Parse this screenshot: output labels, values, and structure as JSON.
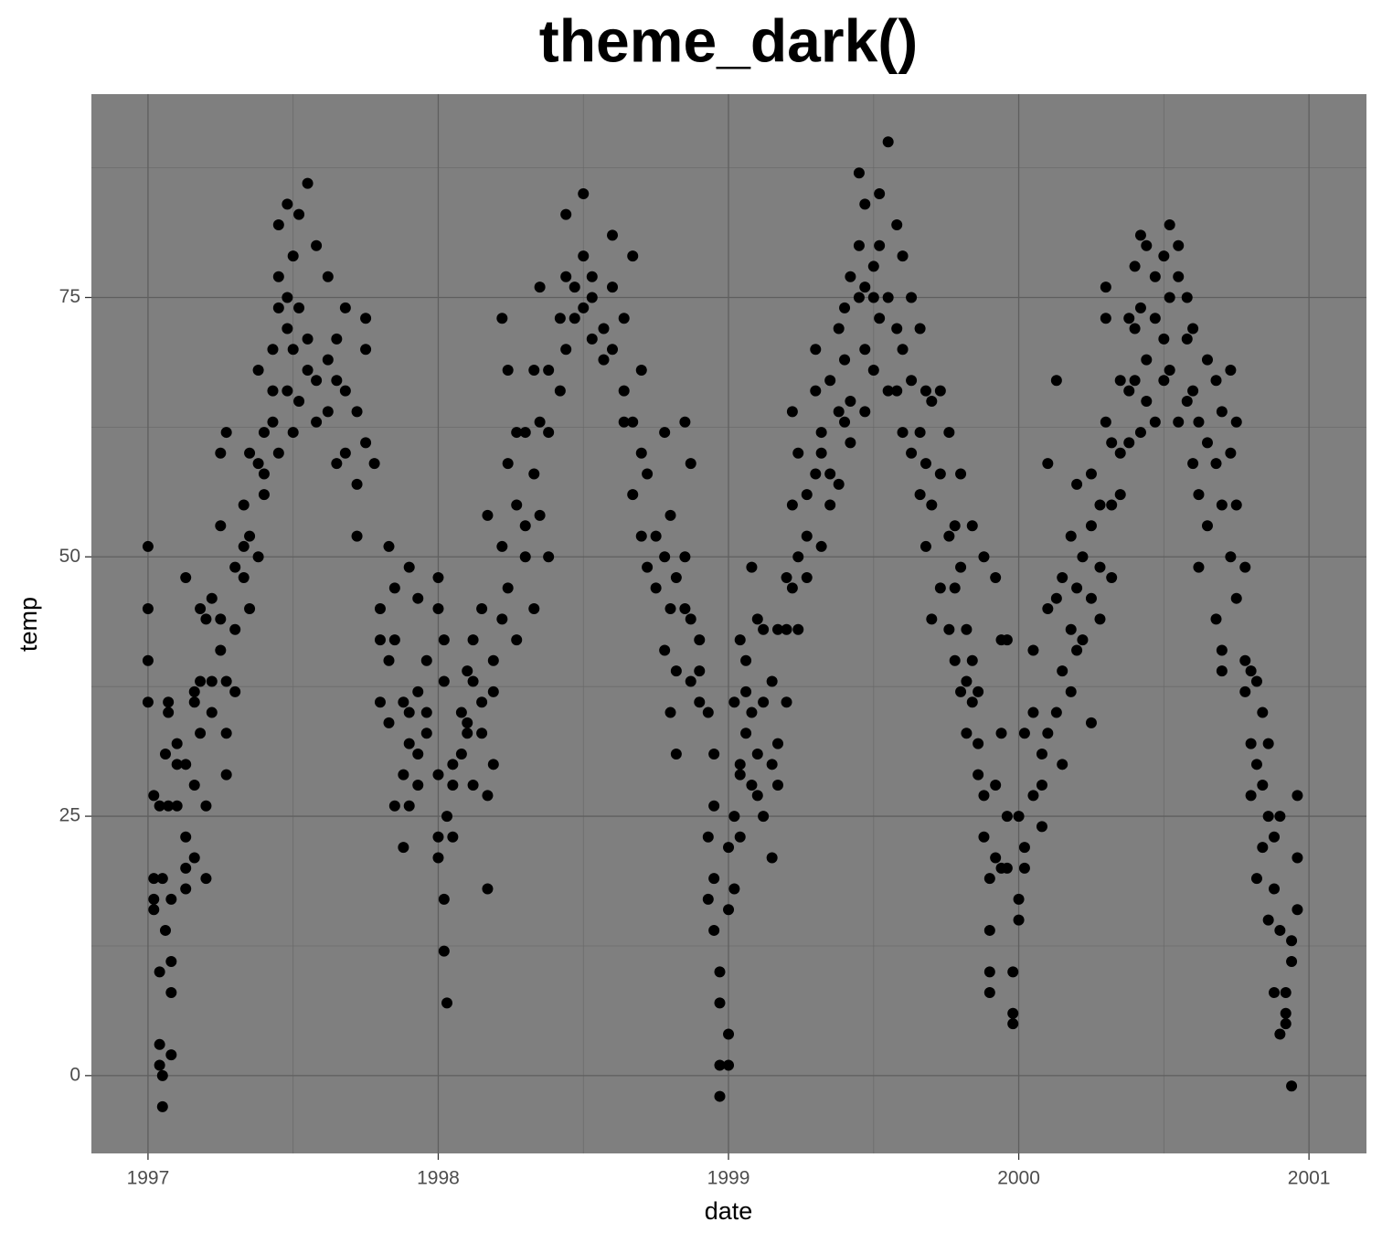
{
  "chart_data": {
    "type": "scatter",
    "title": "theme_dark()",
    "x_label": "date",
    "y_label": "temp",
    "xlim": [
      1996.805,
      2001.198
    ],
    "ylim": [
      -7.5,
      94.6
    ],
    "xticks": [
      1997,
      1998,
      1999,
      2000,
      2001
    ],
    "yticks": [
      0,
      25,
      50,
      75
    ],
    "x_minor_ticks": [
      1997.5,
      1998.5,
      1999.5,
      2000.5
    ],
    "y_minor_ticks": [
      12.5,
      37.5,
      62.5,
      87.5
    ],
    "grid": true,
    "background": "#7f7f7f",
    "x": [
      1997,
      1997,
      1997,
      1997,
      1997.02,
      1997.02,
      1997.02,
      1997.02,
      1997.04,
      1997.04,
      1997.04,
      1997.04,
      1997.05,
      1997.05,
      1997.05,
      1997.06,
      1997.06,
      1997.07,
      1997.07,
      1997.07,
      1997.08,
      1997.08,
      1997.08,
      1997.08,
      1997.1,
      1997.1,
      1997.1,
      1997.13,
      1997.13,
      1997.13,
      1997.13,
      1997.13,
      1997.16,
      1997.16,
      1997.16,
      1997.16,
      1997.18,
      1997.18,
      1997.18,
      1997.2,
      1997.2,
      1997.2,
      1997.22,
      1997.22,
      1997.22,
      1997.25,
      1997.25,
      1997.25,
      1997.25,
      1997.27,
      1997.27,
      1997.27,
      1997.27,
      1997.3,
      1997.3,
      1997.3,
      1997.33,
      1997.33,
      1997.33,
      1997.35,
      1997.35,
      1997.35,
      1997.38,
      1997.38,
      1997.38,
      1997.4,
      1997.4,
      1997.4,
      1997.43,
      1997.43,
      1997.43,
      1997.45,
      1997.45,
      1997.45,
      1997.45,
      1997.48,
      1997.48,
      1997.48,
      1997.48,
      1997.5,
      1997.5,
      1997.5,
      1997.52,
      1997.52,
      1997.52,
      1997.55,
      1997.55,
      1997.55,
      1997.58,
      1997.58,
      1997.58,
      1997.62,
      1997.62,
      1997.62,
      1997.65,
      1997.65,
      1997.65,
      1997.68,
      1997.68,
      1997.68,
      1997.72,
      1997.72,
      1997.72,
      1997.75,
      1997.75,
      1997.75,
      1997.78,
      1997.8,
      1997.8,
      1997.8,
      1997.83,
      1997.83,
      1997.83,
      1997.85,
      1997.85,
      1997.85,
      1997.88,
      1997.88,
      1997.88,
      1997.9,
      1997.9,
      1997.9,
      1997.9,
      1997.93,
      1997.93,
      1997.93,
      1997.93,
      1997.96,
      1997.96,
      1997.96,
      1998,
      1998,
      1998,
      1998,
      1998,
      1998.02,
      1998.02,
      1998.02,
      1998.02,
      1998.03,
      1998.03,
      1998.05,
      1998.05,
      1998.05,
      1998.08,
      1998.08,
      1998.1,
      1998.1,
      1998.1,
      1998.12,
      1998.12,
      1998.12,
      1998.15,
      1998.15,
      1998.15,
      1998.17,
      1998.17,
      1998.17,
      1998.19,
      1998.19,
      1998.19,
      1998.22,
      1998.22,
      1998.22,
      1998.24,
      1998.24,
      1998.24,
      1998.27,
      1998.27,
      1998.27,
      1998.3,
      1998.3,
      1998.3,
      1998.33,
      1998.33,
      1998.33,
      1998.35,
      1998.35,
      1998.35,
      1998.38,
      1998.38,
      1998.38,
      1998.42,
      1998.42,
      1998.44,
      1998.44,
      1998.44,
      1998.47,
      1998.47,
      1998.5,
      1998.5,
      1998.5,
      1998.53,
      1998.53,
      1998.53,
      1998.57,
      1998.57,
      1998.6,
      1998.6,
      1998.6,
      1998.64,
      1998.64,
      1998.64,
      1998.67,
      1998.67,
      1998.67,
      1998.7,
      1998.7,
      1998.7,
      1998.72,
      1998.72,
      1998.75,
      1998.75,
      1998.78,
      1998.78,
      1998.78,
      1998.8,
      1998.8,
      1998.8,
      1998.82,
      1998.82,
      1998.82,
      1998.85,
      1998.85,
      1998.85,
      1998.87,
      1998.87,
      1998.87,
      1998.9,
      1998.9,
      1998.9,
      1998.93,
      1998.93,
      1998.93,
      1998.95,
      1998.95,
      1998.95,
      1998.95,
      1998.97,
      1998.97,
      1998.97,
      1998.97,
      1999,
      1999,
      1999,
      1999,
      1999.02,
      1999.02,
      1999.02,
      1999.04,
      1999.04,
      1999.04,
      1999.04,
      1999.06,
      1999.06,
      1999.06,
      1999.08,
      1999.08,
      1999.08,
      1999.1,
      1999.1,
      1999.1,
      1999.12,
      1999.12,
      1999.12,
      1999.15,
      1999.15,
      1999.15,
      1999.17,
      1999.17,
      1999.17,
      1999.2,
      1999.2,
      1999.2,
      1999.22,
      1999.22,
      1999.22,
      1999.24,
      1999.24,
      1999.24,
      1999.27,
      1999.27,
      1999.27,
      1999.3,
      1999.3,
      1999.3,
      1999.32,
      1999.32,
      1999.32,
      1999.35,
      1999.35,
      1999.35,
      1999.38,
      1999.38,
      1999.38,
      1999.4,
      1999.4,
      1999.4,
      1999.42,
      1999.42,
      1999.42,
      1999.45,
      1999.45,
      1999.45,
      1999.47,
      1999.47,
      1999.47,
      1999.47,
      1999.5,
      1999.5,
      1999.5,
      1999.52,
      1999.52,
      1999.52,
      1999.55,
      1999.55,
      1999.55,
      1999.58,
      1999.58,
      1999.58,
      1999.6,
      1999.6,
      1999.6,
      1999.63,
      1999.63,
      1999.63,
      1999.66,
      1999.66,
      1999.66,
      1999.68,
      1999.68,
      1999.68,
      1999.7,
      1999.7,
      1999.7,
      1999.73,
      1999.73,
      1999.73,
      1999.76,
      1999.76,
      1999.76,
      1999.78,
      1999.78,
      1999.78,
      1999.8,
      1999.8,
      1999.8,
      1999.82,
      1999.82,
      1999.82,
      1999.84,
      1999.84,
      1999.84,
      1999.86,
      1999.86,
      1999.86,
      1999.88,
      1999.88,
      1999.88,
      1999.9,
      1999.9,
      1999.9,
      1999.9,
      1999.92,
      1999.92,
      1999.92,
      1999.94,
      1999.94,
      1999.94,
      1999.96,
      1999.96,
      1999.96,
      1999.98,
      1999.98,
      1999.98,
      2000,
      2000,
      2000,
      2000.02,
      2000.02,
      2000.02,
      2000.05,
      2000.05,
      2000.05,
      2000.08,
      2000.08,
      2000.08,
      2000.1,
      2000.1,
      2000.1,
      2000.13,
      2000.13,
      2000.13,
      2000.15,
      2000.15,
      2000.15,
      2000.18,
      2000.18,
      2000.18,
      2000.2,
      2000.2,
      2000.2,
      2000.22,
      2000.22,
      2000.25,
      2000.25,
      2000.25,
      2000.25,
      2000.28,
      2000.28,
      2000.28,
      2000.3,
      2000.3,
      2000.3,
      2000.32,
      2000.32,
      2000.32,
      2000.35,
      2000.35,
      2000.35,
      2000.38,
      2000.38,
      2000.38,
      2000.4,
      2000.4,
      2000.4,
      2000.42,
      2000.42,
      2000.42,
      2000.44,
      2000.44,
      2000.44,
      2000.47,
      2000.47,
      2000.47,
      2000.5,
      2000.5,
      2000.5,
      2000.52,
      2000.52,
      2000.52,
      2000.55,
      2000.55,
      2000.55,
      2000.58,
      2000.58,
      2000.58,
      2000.6,
      2000.6,
      2000.6,
      2000.62,
      2000.62,
      2000.62,
      2000.65,
      2000.65,
      2000.65,
      2000.68,
      2000.68,
      2000.68,
      2000.7,
      2000.7,
      2000.7,
      2000.7,
      2000.73,
      2000.73,
      2000.73,
      2000.75,
      2000.75,
      2000.75,
      2000.78,
      2000.78,
      2000.78,
      2000.8,
      2000.8,
      2000.8,
      2000.82,
      2000.82,
      2000.82,
      2000.84,
      2000.84,
      2000.84,
      2000.86,
      2000.86,
      2000.86,
      2000.88,
      2000.88,
      2000.88,
      2000.9,
      2000.9,
      2000.9,
      2000.92,
      2000.92,
      2000.92,
      2000.94,
      2000.94,
      2000.94,
      2000.96,
      2000.96,
      2000.96
    ],
    "series": [
      {
        "color": "#000000",
        "values": [
          36,
          45,
          51,
          40,
          27,
          19,
          16,
          17,
          3,
          1,
          10,
          26,
          -3,
          0,
          19,
          14,
          31,
          26,
          36,
          35,
          8,
          17,
          2,
          11,
          26,
          30,
          32,
          20,
          23,
          18,
          30,
          48,
          36,
          28,
          21,
          37,
          33,
          45,
          38,
          26,
          19,
          44,
          46,
          35,
          38,
          60,
          53,
          44,
          41,
          62,
          33,
          29,
          38,
          43,
          49,
          37,
          55,
          48,
          51,
          60,
          45,
          52,
          59,
          50,
          68,
          58,
          56,
          62,
          63,
          70,
          66,
          77,
          82,
          74,
          60,
          84,
          75,
          72,
          66,
          79,
          70,
          62,
          83,
          74,
          65,
          86,
          71,
          68,
          80,
          67,
          63,
          77,
          69,
          64,
          71,
          67,
          59,
          74,
          66,
          60,
          57,
          64,
          52,
          73,
          70,
          61,
          59,
          42,
          45,
          36,
          51,
          40,
          34,
          47,
          42,
          26,
          36,
          29,
          22,
          35,
          26,
          32,
          49,
          46,
          28,
          37,
          31,
          40,
          33,
          35,
          29,
          21,
          23,
          48,
          45,
          42,
          38,
          17,
          12,
          7,
          25,
          23,
          30,
          28,
          31,
          35,
          34,
          39,
          33,
          42,
          38,
          28,
          45,
          36,
          33,
          54,
          27,
          18,
          40,
          30,
          37,
          51,
          44,
          73,
          68,
          59,
          47,
          62,
          55,
          42,
          62,
          53,
          50,
          68,
          58,
          45,
          76,
          63,
          54,
          62,
          68,
          50,
          73,
          66,
          83,
          77,
          70,
          76,
          73,
          79,
          85,
          74,
          71,
          77,
          75,
          72,
          69,
          81,
          76,
          70,
          66,
          73,
          63,
          79,
          63,
          56,
          60,
          68,
          52,
          58,
          49,
          52,
          47,
          62,
          50,
          41,
          54,
          45,
          35,
          48,
          39,
          31,
          63,
          50,
          45,
          59,
          38,
          44,
          36,
          39,
          42,
          35,
          23,
          17,
          31,
          26,
          19,
          14,
          10,
          7,
          1,
          -2,
          4,
          1,
          16,
          22,
          25,
          18,
          36,
          30,
          29,
          42,
          23,
          33,
          40,
          37,
          49,
          35,
          28,
          44,
          31,
          27,
          36,
          25,
          43,
          21,
          30,
          38,
          32,
          28,
          43,
          48,
          36,
          43,
          64,
          55,
          47,
          60,
          50,
          43,
          52,
          56,
          48,
          66,
          70,
          58,
          60,
          51,
          62,
          67,
          55,
          58,
          72,
          64,
          57,
          74,
          69,
          63,
          77,
          65,
          61,
          87,
          80,
          75,
          84,
          76,
          70,
          64,
          78,
          75,
          68,
          85,
          80,
          73,
          90,
          75,
          66,
          82,
          72,
          66,
          79,
          70,
          62,
          75,
          67,
          60,
          72,
          62,
          56,
          66,
          59,
          51,
          65,
          55,
          44,
          66,
          58,
          47,
          62,
          52,
          43,
          53,
          47,
          40,
          58,
          49,
          37,
          43,
          38,
          33,
          53,
          40,
          36,
          37,
          32,
          29,
          50,
          27,
          23,
          19,
          14,
          10,
          8,
          48,
          28,
          21,
          42,
          33,
          20,
          42,
          25,
          20,
          10,
          6,
          5,
          25,
          17,
          15,
          33,
          22,
          20,
          41,
          35,
          27,
          28,
          31,
          24,
          33,
          59,
          45,
          67,
          46,
          35,
          48,
          39,
          30,
          52,
          43,
          37,
          57,
          47,
          41,
          50,
          42,
          58,
          53,
          46,
          34,
          55,
          49,
          44,
          73,
          63,
          76,
          61,
          55,
          48,
          67,
          60,
          56,
          73,
          66,
          61,
          78,
          72,
          67,
          81,
          74,
          62,
          80,
          69,
          65,
          77,
          73,
          63,
          79,
          71,
          67,
          82,
          75,
          68,
          80,
          77,
          63,
          75,
          71,
          65,
          72,
          66,
          59,
          63,
          56,
          49,
          69,
          61,
          53,
          67,
          59,
          44,
          64,
          55,
          41,
          39,
          68,
          60,
          50,
          63,
          55,
          46,
          49,
          40,
          37,
          39,
          32,
          27,
          38,
          30,
          19,
          35,
          28,
          22,
          32,
          25,
          15,
          23,
          18,
          8,
          25,
          14,
          4,
          8,
          6,
          5,
          13,
          11,
          -1,
          27,
          21,
          16
        ]
      }
    ]
  }
}
